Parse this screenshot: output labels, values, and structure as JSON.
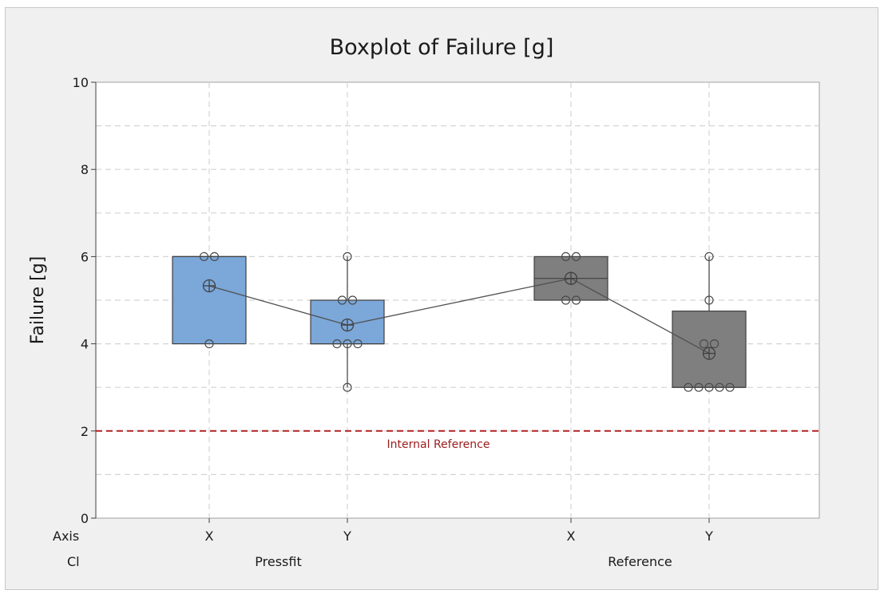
{
  "chart_data": {
    "type": "boxplot",
    "title": "Boxplot of Failure [g]",
    "ylabel": "Failure [g]",
    "ylim": [
      0,
      10
    ],
    "yticks": [
      0,
      2,
      4,
      6,
      8,
      10
    ],
    "grid": true,
    "row_labels": {
      "axis": "Axis",
      "cl": "Cl"
    },
    "groups": [
      {
        "name": "Pressfit",
        "color": "#7ba7d9",
        "boxes": [
          {
            "label": "X",
            "q1": 4,
            "median": 6,
            "q3": 6,
            "whisker_low": 4,
            "whisker_high": 6,
            "mean": 5.33,
            "points": [
              4,
              6,
              6
            ]
          },
          {
            "label": "Y",
            "q1": 4,
            "median": 4,
            "q3": 5,
            "whisker_low": 3,
            "whisker_high": 6,
            "mean": 4.43,
            "points": [
              3,
              4,
              4,
              4,
              5,
              5,
              6
            ]
          }
        ]
      },
      {
        "name": "Reference",
        "color": "#7f7f7f",
        "boxes": [
          {
            "label": "X",
            "q1": 5,
            "median": 5.5,
            "q3": 6,
            "whisker_low": 5,
            "whisker_high": 6,
            "mean": 5.5,
            "points": [
              5,
              5,
              6,
              6
            ]
          },
          {
            "label": "Y",
            "q1": 3,
            "median": 3,
            "q3": 4.75,
            "whisker_low": 3,
            "whisker_high": 6,
            "mean": 3.78,
            "points": [
              3,
              3,
              3,
              3,
              3,
              4,
              4,
              5,
              6
            ]
          }
        ]
      }
    ],
    "reference_line": {
      "value": 2,
      "label": "Internal Reference",
      "color": "#b22222"
    },
    "mean_connect_line": true
  }
}
